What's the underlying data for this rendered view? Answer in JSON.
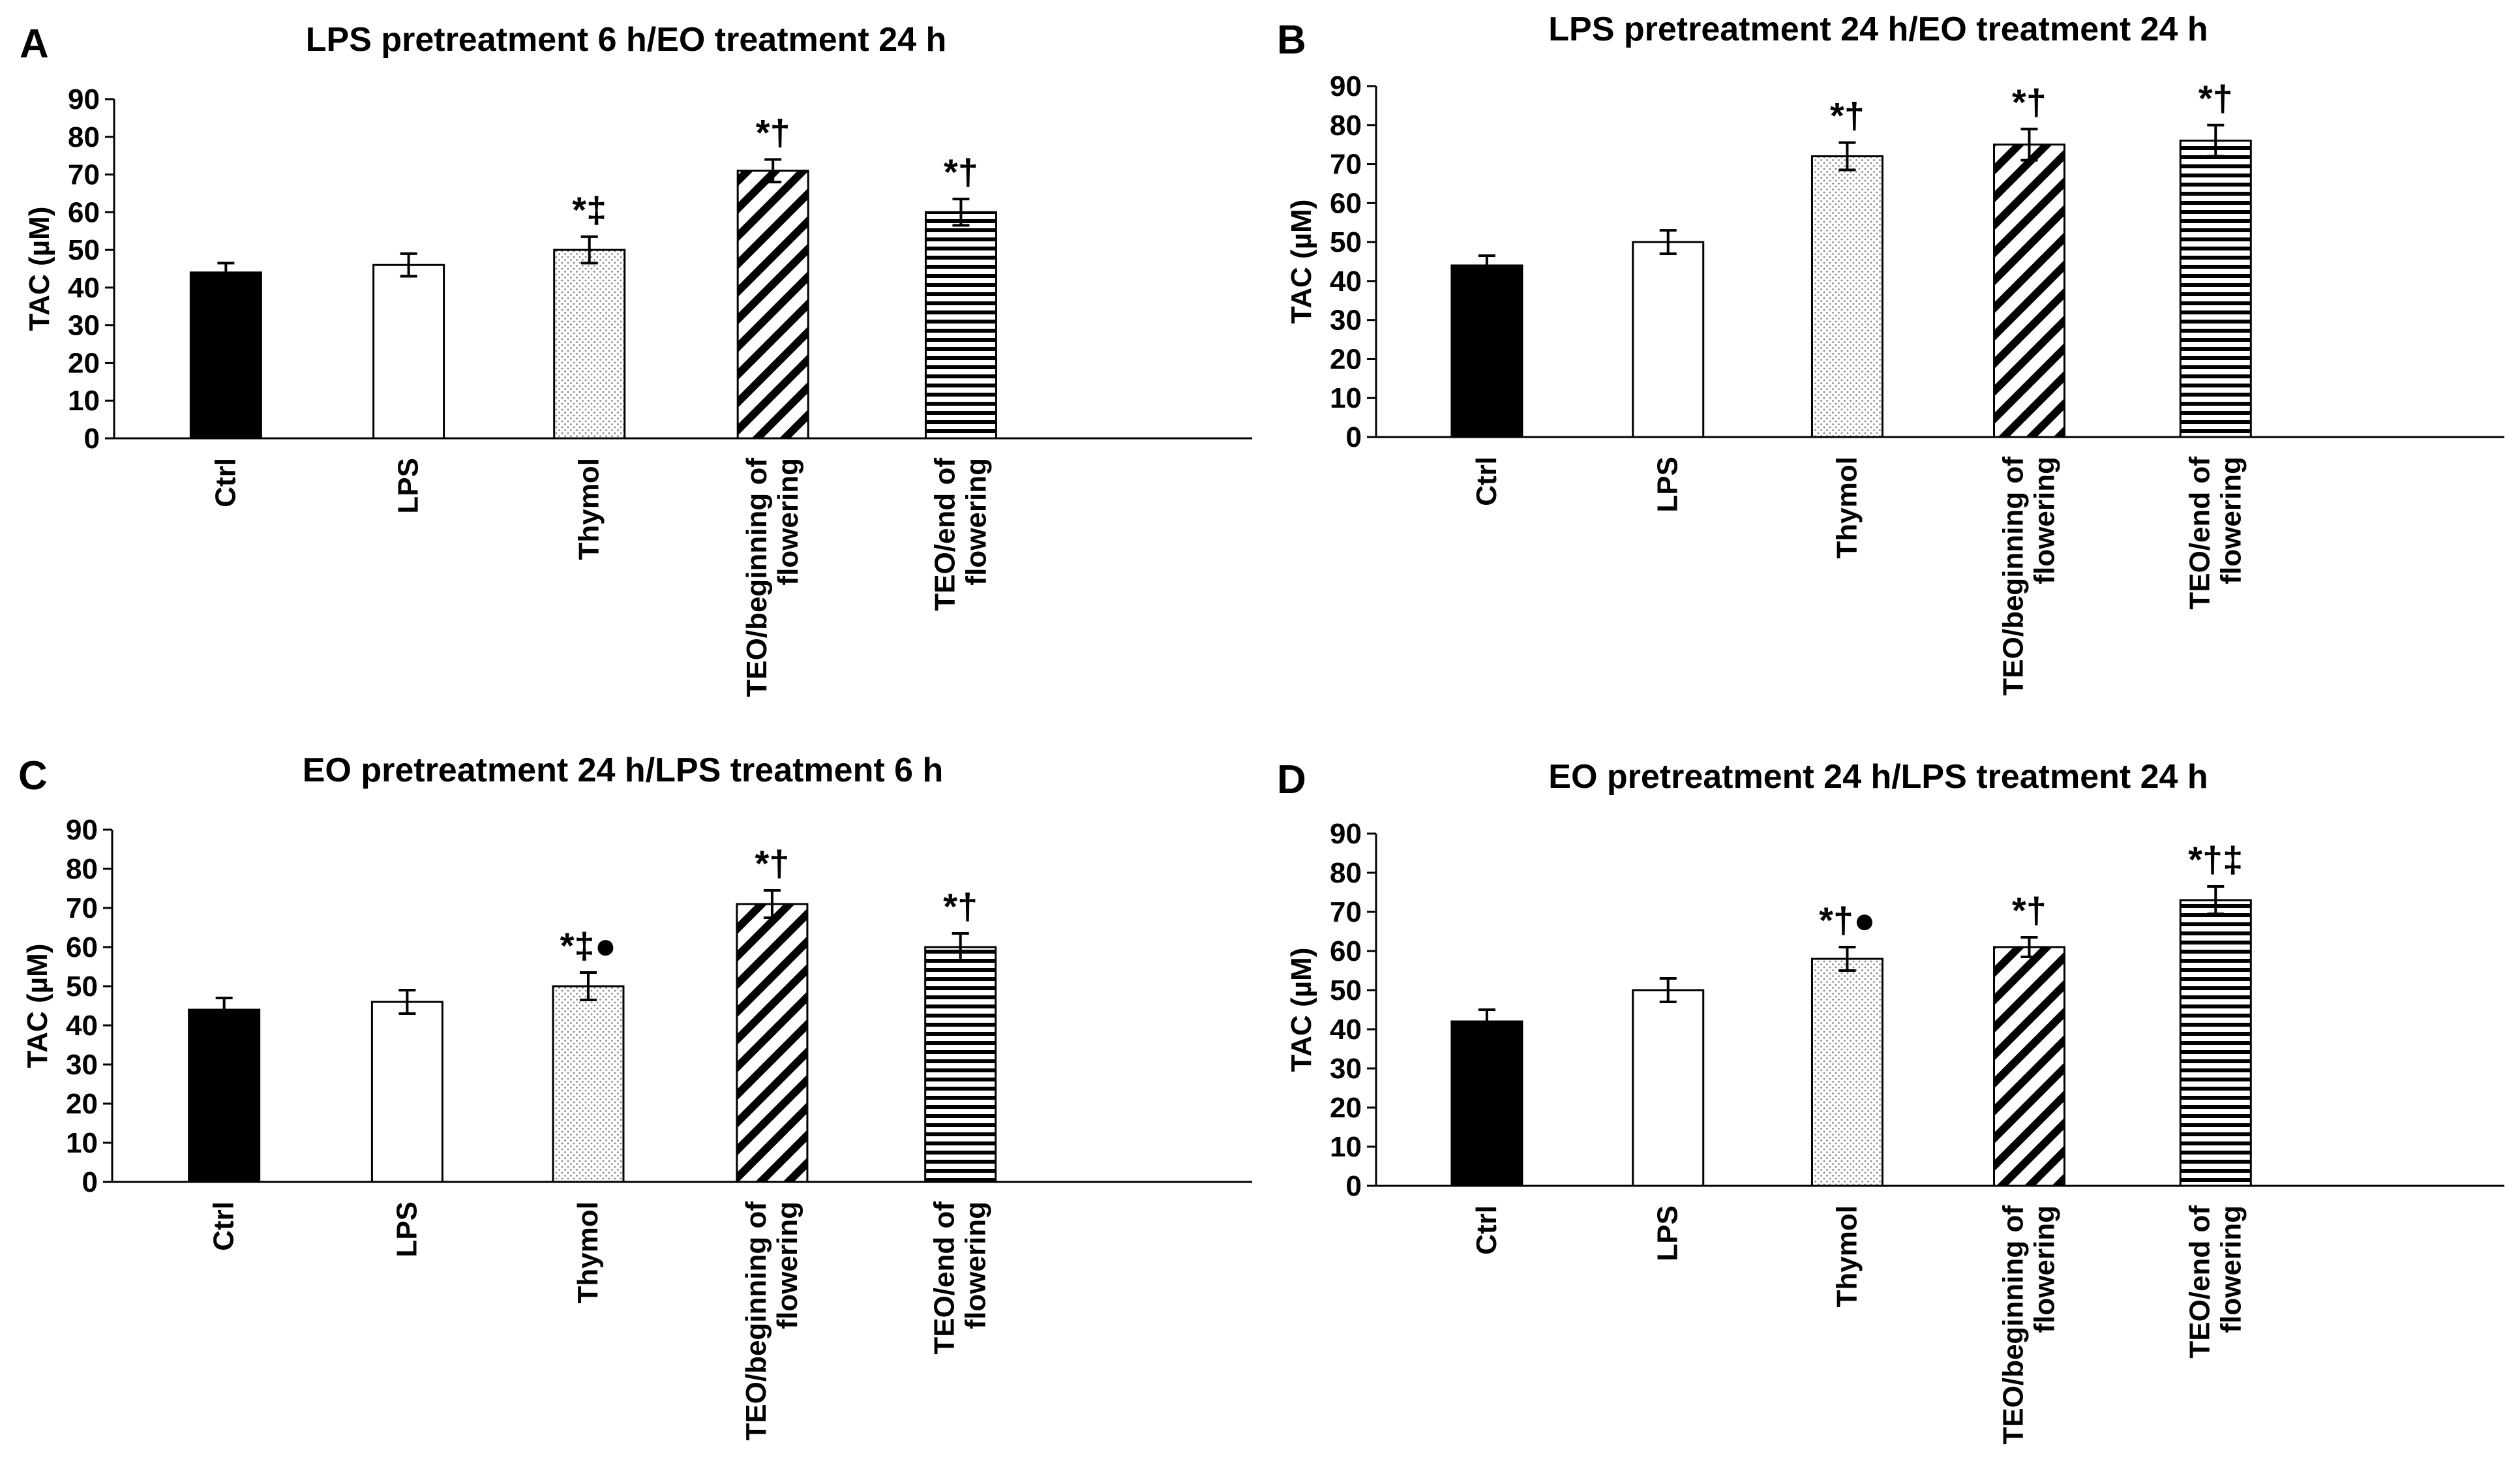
{
  "chart_data": [
    {
      "type": "bar",
      "letter": "A",
      "title": "LPS pretreatment 6 h/EO treatment 24 h",
      "ylabel": "TAC (µM)",
      "ylim": [
        0,
        90
      ],
      "yticks": [
        0,
        10,
        20,
        30,
        40,
        50,
        60,
        70,
        80,
        90
      ],
      "categories": [
        [
          "Ctrl"
        ],
        [
          "LPS"
        ],
        [
          "Thymol"
        ],
        [
          "TEO/beginning of",
          "flowering"
        ],
        [
          "TEO/end of",
          "flowering"
        ]
      ],
      "values": [
        44,
        46,
        50,
        71,
        60
      ],
      "errors": [
        2.5,
        3,
        3.5,
        3,
        3.5
      ],
      "significance": [
        "",
        "",
        "*‡",
        "*†",
        "*†"
      ],
      "patterns": [
        "solid",
        "empty",
        "dots",
        "diagonal",
        "horizontal"
      ]
    },
    {
      "type": "bar",
      "letter": "B",
      "title": "LPS pretreatment 24 h/EO treatment 24 h",
      "ylabel": "TAC (µM)",
      "ylim": [
        0,
        90
      ],
      "yticks": [
        0,
        10,
        20,
        30,
        40,
        50,
        60,
        70,
        80,
        90
      ],
      "categories": [
        [
          "Ctrl"
        ],
        [
          "LPS"
        ],
        [
          "Thymol"
        ],
        [
          "TEO/beginning of",
          "flowering"
        ],
        [
          "TEO/end of",
          "flowering"
        ]
      ],
      "values": [
        44,
        50,
        72,
        75,
        76
      ],
      "errors": [
        2.5,
        3,
        3.5,
        4,
        4
      ],
      "significance": [
        "",
        "",
        "*†",
        "*†",
        "*†"
      ],
      "patterns": [
        "solid",
        "empty",
        "dots",
        "diagonal",
        "horizontal"
      ]
    },
    {
      "type": "bar",
      "letter": "C",
      "title": "EO pretreatment 24 h/LPS treatment 6 h",
      "ylabel": "TAC (µM)",
      "ylim": [
        0,
        90
      ],
      "yticks": [
        0,
        10,
        20,
        30,
        40,
        50,
        60,
        70,
        80,
        90
      ],
      "categories": [
        [
          "Ctrl"
        ],
        [
          "LPS"
        ],
        [
          "Thymol"
        ],
        [
          "TEO/beginning of",
          "flowering"
        ],
        [
          "TEO/end of",
          "flowering"
        ]
      ],
      "values": [
        44,
        46,
        50,
        71,
        60
      ],
      "errors": [
        3,
        3,
        3.5,
        3.5,
        3.5
      ],
      "significance": [
        "",
        "",
        "*‡●",
        "*†",
        "*†"
      ],
      "patterns": [
        "solid",
        "empty",
        "dots",
        "diagonal",
        "horizontal"
      ]
    },
    {
      "type": "bar",
      "letter": "D",
      "title": "EO pretreatment 24 h/LPS treatment 24 h",
      "ylabel": "TAC (µM)",
      "ylim": [
        0,
        90
      ],
      "yticks": [
        0,
        10,
        20,
        30,
        40,
        50,
        60,
        70,
        80,
        90
      ],
      "categories": [
        [
          "Ctrl"
        ],
        [
          "LPS"
        ],
        [
          "Thymol"
        ],
        [
          "TEO/beginning of",
          "flowering"
        ],
        [
          "TEO/end of",
          "flowering"
        ]
      ],
      "values": [
        42,
        50,
        58,
        61,
        73
      ],
      "errors": [
        3,
        3,
        3,
        2.5,
        3.5
      ],
      "significance": [
        "",
        "",
        "*†●",
        "*†",
        "*†‡"
      ],
      "patterns": [
        "solid",
        "empty",
        "dots",
        "diagonal",
        "horizontal"
      ]
    }
  ]
}
